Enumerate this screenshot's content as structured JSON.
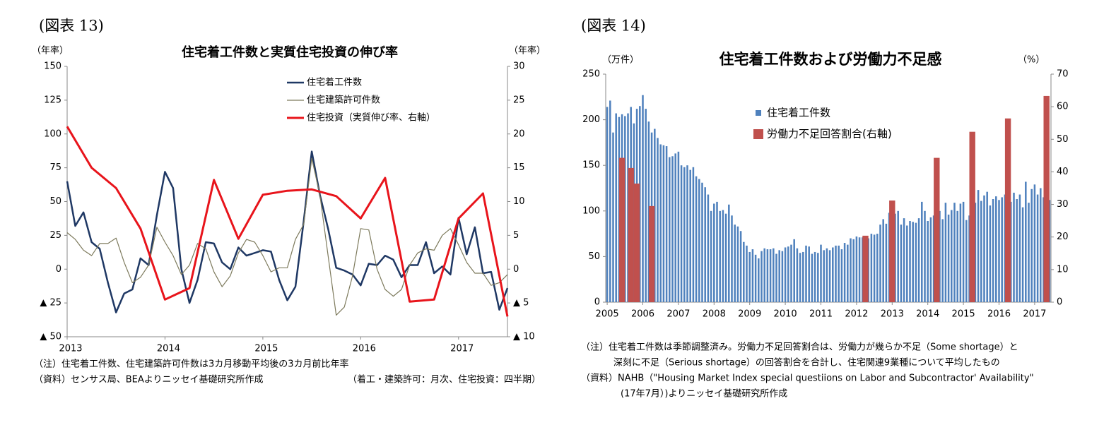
{
  "chart_data": [
    {
      "type": "line",
      "label": "(図表 13)",
      "title": "住宅着工件数と実質住宅投資の伸び率",
      "ylabel": "（年率）",
      "y2label": "（年率）",
      "xlim": [
        2013,
        2017.5
      ],
      "xticks": [
        2013,
        2014,
        2015,
        2016,
        2017
      ],
      "ylim": [
        -50,
        150
      ],
      "yticks": [
        {
          "value": -50,
          "label": "▲ 50"
        },
        {
          "value": -25,
          "label": "▲ 25"
        },
        0,
        25,
        50,
        75,
        100,
        125,
        150
      ],
      "y2lim": [
        -10,
        30
      ],
      "y2ticks": [
        {
          "value": -10,
          "label": "▲ 10"
        },
        {
          "value": -5,
          "label": "▲ 5"
        },
        0,
        5,
        10,
        15,
        20,
        25,
        30
      ],
      "grid": false,
      "series": [
        {
          "name": "住宅着工件数",
          "color": "#1f3864",
          "width": 2.5,
          "x": [
            2013,
            2013.083,
            2013.167,
            2013.25,
            2013.333,
            2013.417,
            2013.5,
            2013.583,
            2013.667,
            2013.75,
            2013.833,
            2013.917,
            2014,
            2014.083,
            2014.167,
            2014.25,
            2014.333,
            2014.417,
            2014.5,
            2014.583,
            2014.667,
            2014.75,
            2014.833,
            2014.917,
            2015,
            2015.083,
            2015.167,
            2015.25,
            2015.333,
            2015.417,
            2015.5,
            2015.583,
            2015.667,
            2015.75,
            2015.833,
            2015.917,
            2016,
            2016.083,
            2016.167,
            2016.25,
            2016.333,
            2016.417,
            2016.5,
            2016.583,
            2016.667,
            2016.75,
            2016.833,
            2016.917,
            2017,
            2017.083,
            2017.167,
            2017.25,
            2017.333,
            2017.417,
            2017.5
          ],
          "values": [
            65,
            32,
            42,
            20,
            15,
            -10,
            -32,
            -18,
            -15,
            8,
            3,
            40,
            72,
            60,
            0,
            -25,
            -8,
            20,
            19,
            5,
            0,
            16,
            10,
            12,
            14,
            13,
            -8,
            -23,
            -13,
            35,
            87,
            55,
            30,
            1,
            -1,
            -4,
            -12,
            4,
            3,
            10,
            7,
            -6,
            3,
            3,
            20,
            -3,
            2,
            -4,
            38,
            11,
            31,
            -3,
            -2,
            -30,
            -14
          ]
        },
        {
          "name": "住宅建築許可件数",
          "color": "#7d7a5c",
          "width": 1.2,
          "x": [
            2013,
            2013.083,
            2013.167,
            2013.25,
            2013.333,
            2013.417,
            2013.5,
            2013.583,
            2013.667,
            2013.75,
            2013.833,
            2013.917,
            2014,
            2014.083,
            2014.167,
            2014.25,
            2014.333,
            2014.417,
            2014.5,
            2014.583,
            2014.667,
            2014.75,
            2014.833,
            2014.917,
            2015,
            2015.083,
            2015.167,
            2015.25,
            2015.333,
            2015.417,
            2015.5,
            2015.583,
            2015.667,
            2015.75,
            2015.833,
            2015.917,
            2016,
            2016.083,
            2016.167,
            2016.25,
            2016.333,
            2016.417,
            2016.5,
            2016.583,
            2016.667,
            2016.75,
            2016.833,
            2016.917,
            2017,
            2017.083,
            2017.167,
            2017.25,
            2017.333,
            2017.417,
            2017.5
          ],
          "values": [
            27,
            22,
            14,
            10,
            19,
            19,
            23,
            5,
            -10,
            -6,
            3,
            31,
            20,
            10,
            -4,
            3,
            19,
            15,
            -2,
            -13,
            -5,
            12,
            22,
            20,
            10,
            -2,
            1,
            1,
            22,
            33,
            82,
            55,
            10,
            -34,
            -28,
            -5,
            30,
            29,
            0,
            -15,
            -20,
            -15,
            3,
            12,
            15,
            14,
            25,
            30,
            18,
            5,
            -3,
            -3,
            -12,
            -10,
            -4
          ]
        },
        {
          "name": "住宅投資（実質伸び率、右軸）",
          "color": "#e8141b",
          "width": 3,
          "axis": "y2",
          "x": [
            2013,
            2013.25,
            2013.5,
            2013.75,
            2014,
            2014.25,
            2014.5,
            2014.75,
            2015,
            2015.25,
            2015.5,
            2015.75,
            2016,
            2016.25,
            2016.5,
            2016.75,
            2017,
            2017.25,
            2017.5
          ],
          "values": [
            21.1,
            15,
            12,
            6,
            -4.5,
            -2.8,
            13.2,
            4.5,
            11,
            11.6,
            11.8,
            10.8,
            7.5,
            13.5,
            -4.8,
            -4.5,
            7.5,
            11.2,
            -7
          ]
        }
      ],
      "notes": [
        "（注）住宅着工件数、住宅建築許可件数は3カ月移動平均後の3カ月前比年率",
        "（資料）センサス局、BEAよりニッセイ基礎研究所作成",
        "（着工・建築許可：月次、住宅投資：四半期）"
      ]
    },
    {
      "type": "bar",
      "label": "(図表 14)",
      "title": "住宅着工件数および労働力不足感",
      "ylabel": "（万件）",
      "y2label": "（%）",
      "ylim": [
        0,
        250
      ],
      "yticks": [
        0,
        50,
        100,
        150,
        200,
        250
      ],
      "y2lim": [
        0,
        70
      ],
      "y2ticks": [
        0,
        10,
        20,
        30,
        40,
        50,
        60,
        70
      ],
      "grid": false,
      "categories": [
        "2005",
        null,
        null,
        null,
        null,
        null,
        null,
        null,
        null,
        null,
        null,
        null,
        "2006",
        null,
        null,
        null,
        null,
        null,
        null,
        null,
        null,
        null,
        null,
        null,
        "2007",
        null,
        null,
        null,
        null,
        null,
        null,
        null,
        null,
        null,
        null,
        null,
        "2008",
        null,
        null,
        null,
        null,
        null,
        null,
        null,
        null,
        null,
        null,
        null,
        "2009",
        null,
        null,
        null,
        null,
        null,
        null,
        null,
        null,
        null,
        null,
        null,
        "2010",
        null,
        null,
        null,
        null,
        null,
        null,
        null,
        null,
        null,
        null,
        null,
        "2011",
        null,
        null,
        null,
        null,
        null,
        null,
        null,
        null,
        null,
        null,
        null,
        "2012",
        null,
        null,
        null,
        null,
        null,
        null,
        null,
        null,
        null,
        null,
        null,
        "2013",
        null,
        null,
        null,
        null,
        null,
        null,
        null,
        null,
        null,
        null,
        null,
        "2014",
        null,
        null,
        null,
        null,
        null,
        null,
        null,
        null,
        null,
        null,
        null,
        "2015",
        null,
        null,
        null,
        null,
        null,
        null,
        null,
        null,
        null,
        null,
        null,
        "2016",
        null,
        null,
        null,
        null,
        null,
        null,
        null,
        null,
        null,
        null,
        null,
        "2017",
        null,
        null,
        null,
        null,
        null
      ],
      "series": [
        {
          "name": "住宅着工件数",
          "color": "#4f81bd",
          "values": [
            214,
            221,
            186,
            207,
            203,
            206,
            204,
            207,
            214,
            196,
            212,
            215,
            227,
            212,
            198,
            186,
            190,
            180,
            173,
            172,
            171,
            159,
            160,
            163,
            165,
            150,
            148,
            150,
            145,
            148,
            138,
            135,
            131,
            126,
            118,
            100,
            108,
            110,
            100,
            101,
            97,
            107,
            95,
            85,
            83,
            78,
            66,
            62,
            55,
            58,
            52,
            48,
            56,
            59,
            58,
            58,
            59,
            53,
            57,
            56,
            60,
            61,
            63,
            69,
            59,
            54,
            55,
            62,
            61,
            53,
            55,
            54,
            63,
            57,
            59,
            57,
            60,
            62,
            62,
            58,
            65,
            63,
            70,
            69,
            72,
            71,
            71,
            72,
            70,
            75,
            74,
            75,
            85,
            91,
            86,
            98,
            90,
            97,
            100,
            85,
            92,
            84,
            89,
            88,
            87,
            92,
            110,
            100,
            89,
            93,
            95,
            107,
            100,
            91,
            109,
            96,
            101,
            109,
            100,
            108,
            110,
            90,
            95,
            119,
            109,
            123,
            111,
            117,
            121,
            106,
            113,
            116,
            112,
            115,
            118,
            116,
            110,
            120,
            113,
            118,
            104,
            132,
            109,
            124,
            129,
            118,
            125,
            115,
            120,
            112
          ]
        },
        {
          "name": "労働力不足回答割合(右軸)",
          "color": "#c0504d",
          "axis": "y2",
          "values": [
            null,
            null,
            null,
            null,
            null,
            44.3,
            null,
            null,
            41.2,
            null,
            36.4,
            null,
            null,
            null,
            null,
            29.5,
            null,
            null,
            null,
            null,
            null,
            null,
            null,
            null,
            null,
            null,
            null,
            null,
            null,
            null,
            null,
            null,
            null,
            null,
            null,
            null,
            null,
            null,
            null,
            null,
            null,
            null,
            null,
            null,
            null,
            null,
            null,
            null,
            null,
            null,
            null,
            null,
            null,
            null,
            null,
            null,
            null,
            null,
            null,
            null,
            null,
            null,
            null,
            null,
            null,
            null,
            null,
            null,
            null,
            null,
            null,
            null,
            null,
            null,
            null,
            null,
            null,
            null,
            null,
            null,
            null,
            null,
            null,
            null,
            null,
            null,
            null,
            20.4,
            null,
            null,
            null,
            null,
            null,
            null,
            null,
            null,
            31.2,
            null,
            null,
            null,
            null,
            null,
            null,
            null,
            null,
            null,
            null,
            null,
            null,
            null,
            null,
            44.3,
            null,
            null,
            null,
            null,
            null,
            null,
            null,
            null,
            null,
            null,
            null,
            52.3,
            null,
            null,
            null,
            null,
            null,
            null,
            null,
            null,
            null,
            null,
            null,
            56.4,
            null,
            null,
            null,
            null,
            null,
            null,
            null,
            null,
            null,
            null,
            null,
            null,
            63.3,
            null
          ]
        }
      ],
      "notes": [
        "（注）住宅着工件数は季節調整済み。労働力不足回答割合は、労働力が幾らか不足（Some shortage）と",
        "深刻に不足（Serious shortage）の回答割合を合計し、住宅関連9業種について平均したもの",
        "（資料）NAHB（\"Housing Market Index special questiions on Labor and Subcontractor' Availability\"",
        "(17年7月）)よりニッセイ基礎研究所作成"
      ]
    }
  ]
}
